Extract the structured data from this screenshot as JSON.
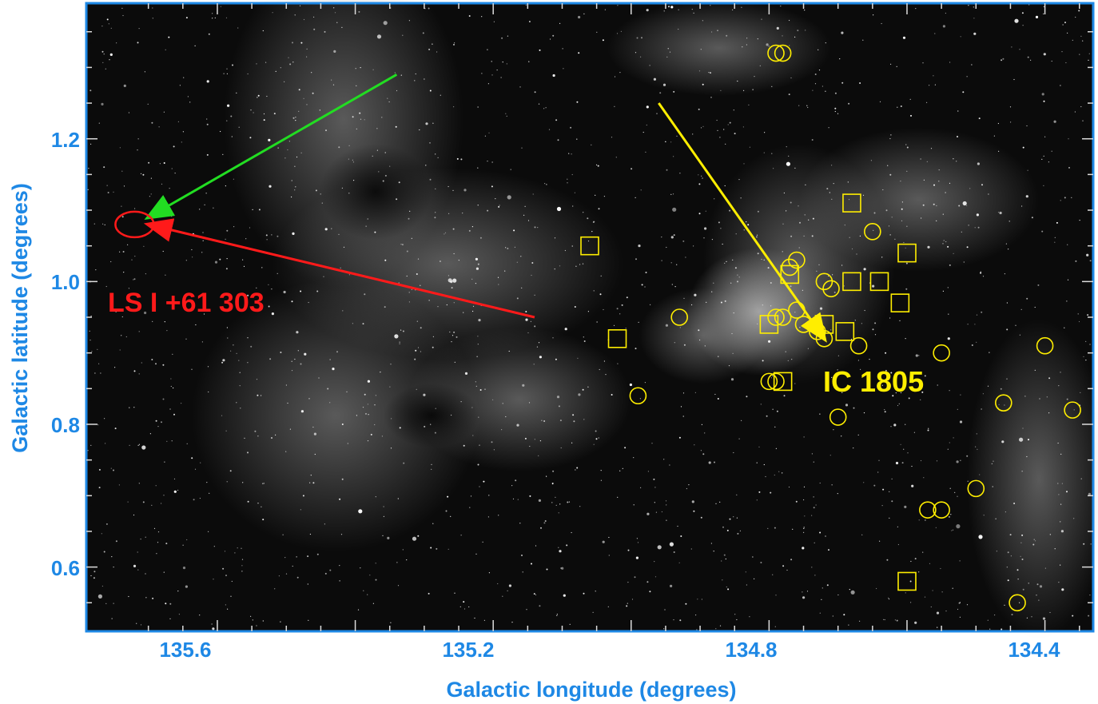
{
  "axes": {
    "xlabel": "Galactic longitude (degrees)",
    "ylabel": "Galactic latitude (degrees)",
    "xlim": [
      135.79,
      134.33
    ],
    "ylim": [
      0.51,
      1.39
    ],
    "x_ticks": [
      "135.6",
      "135.2",
      "134.8",
      "134.4"
    ],
    "y_ticks": [
      "1.2",
      "1.0",
      "0.8",
      "0.6"
    ],
    "label_color": "#1e88e5"
  },
  "labels": {
    "source": "LS I +61 303",
    "cluster": "IC 1805"
  },
  "colors": {
    "source": "#ff1a1a",
    "cluster": "#ffee00",
    "green_arrow": "#22dd22",
    "frame": "#1e88e5"
  },
  "markers": {
    "circles": [
      [
        134.79,
        1.32
      ],
      [
        134.78,
        1.32
      ],
      [
        134.65,
        1.07
      ],
      [
        134.76,
        1.03
      ],
      [
        134.77,
        1.02
      ],
      [
        134.71,
        0.99
      ],
      [
        134.72,
        1.0
      ],
      [
        134.93,
        0.95
      ],
      [
        134.78,
        0.95
      ],
      [
        134.79,
        0.95
      ],
      [
        134.76,
        0.96
      ],
      [
        134.75,
        0.94
      ],
      [
        134.73,
        0.93
      ],
      [
        134.72,
        0.92
      ],
      [
        134.67,
        0.91
      ],
      [
        134.55,
        0.9
      ],
      [
        134.4,
        0.91
      ],
      [
        134.8,
        0.86
      ],
      [
        134.79,
        0.86
      ],
      [
        134.99,
        0.84
      ],
      [
        134.7,
        0.81
      ],
      [
        134.46,
        0.83
      ],
      [
        134.36,
        0.82
      ],
      [
        134.5,
        0.71
      ],
      [
        134.55,
        0.68
      ],
      [
        134.57,
        0.68
      ],
      [
        134.44,
        0.55
      ]
    ],
    "squares": [
      [
        134.68,
        1.11
      ],
      [
        135.06,
        1.05
      ],
      [
        134.6,
        1.04
      ],
      [
        134.77,
        1.01
      ],
      [
        134.68,
        1.0
      ],
      [
        134.64,
        1.0
      ],
      [
        134.61,
        0.97
      ],
      [
        134.8,
        0.94
      ],
      [
        134.72,
        0.94
      ],
      [
        134.69,
        0.93
      ],
      [
        135.02,
        0.92
      ],
      [
        134.78,
        0.86
      ],
      [
        134.6,
        0.58
      ]
    ]
  },
  "arrows": {
    "green": {
      "from": [
        135.34,
        1.29
      ],
      "to": [
        135.7,
        1.09
      ]
    },
    "red": {
      "from": [
        135.14,
        0.95
      ],
      "to": [
        135.7,
        1.08
      ]
    },
    "yellow": {
      "from": [
        134.96,
        1.25
      ],
      "to": [
        134.72,
        0.92
      ]
    }
  },
  "source_ellipse": {
    "center": [
      135.72,
      1.08
    ]
  }
}
